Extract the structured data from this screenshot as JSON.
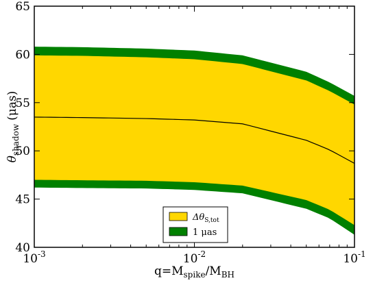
{
  "chart_data": {
    "type": "area",
    "x_scale": "log",
    "xlim": [
      0.001,
      0.1
    ],
    "ylim": [
      40,
      65
    ],
    "x_ticks": [
      {
        "value": 0.001,
        "base": "10",
        "exp": "-3"
      },
      {
        "value": 0.01,
        "base": "10",
        "exp": "-2"
      },
      {
        "value": 0.1,
        "base": "10",
        "exp": "-1"
      }
    ],
    "y_ticks": [
      "40",
      "45",
      "50",
      "55",
      "60",
      "65"
    ],
    "xlabel": {
      "pre": "q=M",
      "sub1": "spike",
      "mid": "/M",
      "sub2": "BH"
    },
    "ylabel": {
      "theta": "θ",
      "sub": "shadow",
      "rest": "(μas)"
    },
    "x": [
      0.001,
      0.002,
      0.005,
      0.01,
      0.02,
      0.05,
      0.07,
      0.1
    ],
    "central": [
      53.5,
      53.45,
      53.35,
      53.2,
      52.8,
      51.1,
      50.1,
      48.7
    ],
    "series": [
      {
        "name": "1 μas",
        "color": "#008000",
        "upper": [
          60.8,
          60.75,
          60.6,
          60.4,
          59.9,
          58.2,
          57.1,
          55.7
        ],
        "lower": [
          46.2,
          46.15,
          46.1,
          45.95,
          45.6,
          44.0,
          43.0,
          41.3
        ]
      },
      {
        "name": "Δθ_S,tot",
        "color": "#ffd700",
        "upper": [
          59.9,
          59.85,
          59.7,
          59.5,
          59.0,
          57.3,
          56.2,
          54.8
        ],
        "lower": [
          47.0,
          46.95,
          46.9,
          46.75,
          46.4,
          44.9,
          43.9,
          42.3
        ]
      }
    ],
    "legend": {
      "placement": "lower-center",
      "entries": [
        {
          "color": "#ffd700",
          "text": "Δθ",
          "sub": "S,tot"
        },
        {
          "color": "#008000",
          "text": "1 μas",
          "sub": ""
        }
      ]
    }
  }
}
